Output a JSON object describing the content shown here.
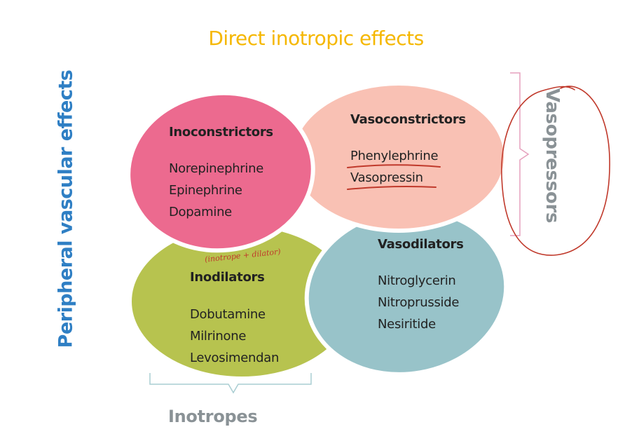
{
  "diagram": {
    "title": "Direct inotropic effects",
    "left_axis_label": "Peripheral vascular effects",
    "right_bracket_label": "Vasopressors",
    "bottom_bracket_label": "Inotropes",
    "annotation": "(inotrope + dilator)",
    "groups": {
      "inoconstrictors": {
        "heading": "Inoconstrictors",
        "color": "#ec6a8f",
        "drugs": [
          "Norepinephrine",
          "Epinephrine",
          "Dopamine"
        ]
      },
      "vasoconstrictors": {
        "heading": "Vasoconstrictors",
        "color": "#f9c1b4",
        "drugs": [
          "Phenylephrine",
          "Vasopressin"
        ]
      },
      "inodilators": {
        "heading": "Inodilators",
        "color": "#b7c34f",
        "drugs": [
          "Dobutamine",
          "Milrinone",
          "Levosimendan"
        ]
      },
      "vasodilators": {
        "heading": "Vasodilators",
        "color": "#98c3c9",
        "drugs": [
          "Nitroglycerin",
          "Nitroprusside",
          "Nesiritide"
        ]
      }
    },
    "bracket_color": "#e6a1bd",
    "bottom_bracket_color": "#a9cdd2",
    "ink_color": "#c0392b"
  }
}
